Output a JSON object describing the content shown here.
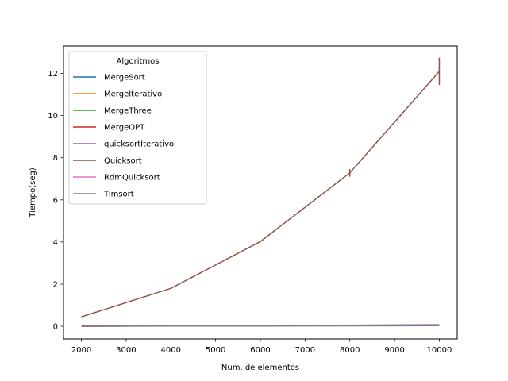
{
  "chart_data": {
    "type": "line",
    "xlabel": "Num. de elementos",
    "ylabel": "Tiempo(seg)",
    "x": [
      2000,
      4000,
      6000,
      8000,
      10000
    ],
    "xlim": [
      1600,
      10400
    ],
    "ylim": [
      -0.6,
      13.3
    ],
    "xticks": [
      2000,
      3000,
      4000,
      5000,
      6000,
      7000,
      8000,
      9000,
      10000
    ],
    "yticks": [
      0,
      2,
      4,
      6,
      8,
      10,
      12
    ],
    "grid": false,
    "legend": {
      "title": "Algoritmos",
      "placement": "upper-left"
    },
    "series": [
      {
        "name": "MergeSort",
        "color": "#1f77b4",
        "values": [
          0.01,
          0.02,
          0.03,
          0.04,
          0.05
        ]
      },
      {
        "name": "MergeIterativo",
        "color": "#ff7f0e",
        "values": [
          0.01,
          0.02,
          0.03,
          0.04,
          0.05
        ]
      },
      {
        "name": "MergeThree",
        "color": "#2ca02c",
        "values": [
          0.01,
          0.02,
          0.03,
          0.04,
          0.05
        ]
      },
      {
        "name": "MergeOPT",
        "color": "#d62728",
        "values": [
          0.01,
          0.02,
          0.03,
          0.04,
          0.05
        ]
      },
      {
        "name": "quicksortIterativo",
        "color": "#9467bd",
        "values": [
          0.0,
          0.02,
          0.04,
          0.05,
          0.08
        ]
      },
      {
        "name": "Quicksort",
        "color": "#8c564b",
        "values": [
          0.45,
          1.8,
          4.02,
          7.28,
          12.1
        ],
        "errors": [
          0.02,
          0.03,
          0.05,
          0.18,
          0.65
        ]
      },
      {
        "name": "RdmQuicksort",
        "color": "#e377c2",
        "values": [
          0.0,
          0.02,
          0.03,
          0.04,
          0.06
        ]
      },
      {
        "name": "Timsort",
        "color": "#7f7f7f",
        "values": [
          0.0,
          0.01,
          0.01,
          0.02,
          0.03
        ]
      }
    ]
  }
}
